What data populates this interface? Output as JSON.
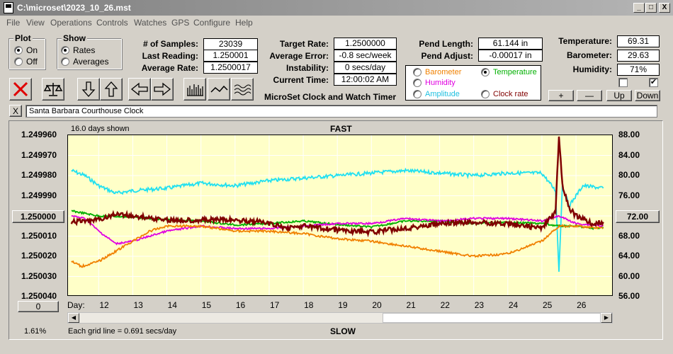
{
  "window": {
    "title": "C:\\microset\\2023_10_26.mst",
    "min": "_",
    "max": "□",
    "close": "X"
  },
  "menu": [
    "File",
    "View",
    "Operations",
    "Controls",
    "Watches",
    "GPS",
    "Configure",
    "Help"
  ],
  "plot_group": {
    "title": "Plot",
    "on": "On",
    "off": "Off"
  },
  "show_group": {
    "title": "Show",
    "rates": "Rates",
    "averages": "Averages"
  },
  "stats": {
    "samples_label": "# of Samples:",
    "samples": "23039",
    "last_label": "Last Reading:",
    "last": "1.250001",
    "avg_label": "Average Rate:",
    "avg": "1.2500017",
    "target_label": "Target Rate:",
    "target": "1.2500000",
    "avgerr_label": "Average Error:",
    "avgerr": "-0.8 sec/week",
    "instab_label": "Instability:",
    "instab": "0 secs/day",
    "time_label": "Current Time:",
    "time": "12:00:02 AM",
    "pendlen_label": "Pend Length:",
    "pendlen": "61.144 in",
    "pendadj_label": "Pend Adjust:",
    "pendadj": "-0.00017 in",
    "temp_label": "Temperature:",
    "temp": "69.31",
    "baro_label": "Barometer:",
    "baro": "29.63",
    "hum_label": "Humidity:",
    "hum": "71%"
  },
  "app_name": "MicroSet Clock and Watch Timer",
  "legend": {
    "barometer": "Barometer",
    "temperature": "Temperature",
    "humidity": "Humidity",
    "amplitude": "Amplitude",
    "clockrate": "Clock rate"
  },
  "adjust_buttons": {
    "plus": "+",
    "minus": "—",
    "up": "Up",
    "down": "Down"
  },
  "clear_button": "X",
  "watch_name": "Santa Barbara Courthouse Clock",
  "chart_data": {
    "type": "line",
    "days_shown": "16.0 days shown",
    "top_label": "FAST",
    "bottom_label": "SLOW",
    "grid_note": "Each grid line = 0.691 secs/day",
    "zoom": "1.61%",
    "left_button": "1.250000",
    "right_button": "72.00",
    "bottom_button": "0",
    "xlabel": "Day:",
    "x_ticks": [
      "12",
      "13",
      "14",
      "15",
      "16",
      "17",
      "18",
      "19",
      "20",
      "21",
      "22",
      "23",
      "24",
      "25",
      "26"
    ],
    "x_range": [
      11.1,
      27.1
    ],
    "left_ticks": [
      "1.249960",
      "1.249970",
      "1.249980",
      "1.249990",
      "1.250000",
      "1.250010",
      "1.250020",
      "1.250030",
      "1.250040"
    ],
    "left_range": [
      1.24996,
      1.25004
    ],
    "right_ticks": [
      "88.00",
      "84.00",
      "80.00",
      "76.00",
      "72.00",
      "68.00",
      "64.00",
      "60.00",
      "56.00"
    ],
    "right_range": [
      88,
      56
    ],
    "colors": {
      "clockrate": "#800000",
      "temperature": "#00b000",
      "humidity": "#e000e0",
      "barometer": "#f08000",
      "amplitude": "#20e0f0"
    },
    "series": [
      {
        "key": "amplitude",
        "axis": "right",
        "x": [
          11.2,
          11.6,
          12.0,
          12.5,
          13.0,
          14.0,
          15.0,
          16.0,
          17.0,
          18.0,
          19.0,
          20.0,
          21.0,
          22.0,
          23.0,
          24.0,
          25.0,
          25.4,
          25.5,
          25.6,
          25.8,
          26.2,
          26.8
        ],
        "y": [
          81,
          80,
          78,
          76.5,
          77,
          77.5,
          78.5,
          78,
          79,
          79.5,
          80,
          80.5,
          81,
          80.5,
          80,
          80.5,
          80.5,
          77,
          61,
          78,
          74,
          78,
          77.5
        ]
      },
      {
        "key": "temperature",
        "axis": "right",
        "x": [
          11.2,
          12.0,
          13.0,
          14.0,
          15.0,
          16.0,
          17.0,
          18.0,
          19.0,
          20.0,
          21.0,
          22.0,
          23.0,
          24.0,
          25.0,
          25.5,
          26.0,
          26.5,
          26.8
        ],
        "y": [
          73,
          72,
          71.8,
          71.2,
          71,
          70.2,
          70.5,
          71,
          70.3,
          69.8,
          71,
          71,
          70.5,
          70.7,
          70.5,
          70,
          70,
          69.5,
          69.8
        ]
      },
      {
        "key": "humidity",
        "axis": "right",
        "x": [
          11.2,
          11.6,
          12.0,
          12.5,
          13.0,
          13.5,
          14.0,
          15.0,
          16.0,
          17.0,
          18.0,
          19.0,
          20.0,
          21.0,
          22.0,
          23.0,
          24.0,
          25.0,
          25.5,
          26.0,
          26.8
        ],
        "y": [
          72,
          71.5,
          69,
          66.5,
          67,
          68,
          69,
          70,
          69.5,
          69.5,
          70,
          70.5,
          70.5,
          71.5,
          71,
          71.5,
          71.5,
          71,
          72,
          70.5,
          70
        ]
      },
      {
        "key": "barometer",
        "axis": "right",
        "x": [
          11.2,
          11.5,
          12.0,
          12.5,
          13.0,
          13.5,
          14.0,
          15.0,
          16.0,
          17.0,
          18.0,
          19.0,
          20.0,
          21.0,
          22.0,
          23.0,
          24.0,
          25.0,
          25.5,
          26.0,
          26.8
        ],
        "y": [
          63,
          62,
          63,
          65,
          67,
          69,
          70,
          70,
          69,
          69,
          68.5,
          67.5,
          67,
          66,
          65,
          64,
          64.5,
          67,
          70,
          70,
          69.5
        ]
      },
      {
        "key": "clockrate",
        "axis": "left",
        "x": [
          11.2,
          12.0,
          12.5,
          13.0,
          14.0,
          15.0,
          16.0,
          16.8,
          17.5,
          18.0,
          19.0,
          20.0,
          21.0,
          22.0,
          23.0,
          24.0,
          25.0,
          25.4,
          25.5,
          25.6,
          25.8,
          26.0,
          26.5,
          26.8
        ],
        "y": [
          1.250003,
          1.250002,
          1.249999,
          1.25,
          1.250002,
          1.250002,
          1.250002,
          1.250003,
          1.250006,
          1.250005,
          1.250007,
          1.250008,
          1.250006,
          1.250004,
          1.250003,
          1.250004,
          1.250006,
          1.249998,
          1.24996,
          1.249985,
          1.249996,
          1.25,
          1.250004,
          1.250003
        ]
      }
    ]
  }
}
